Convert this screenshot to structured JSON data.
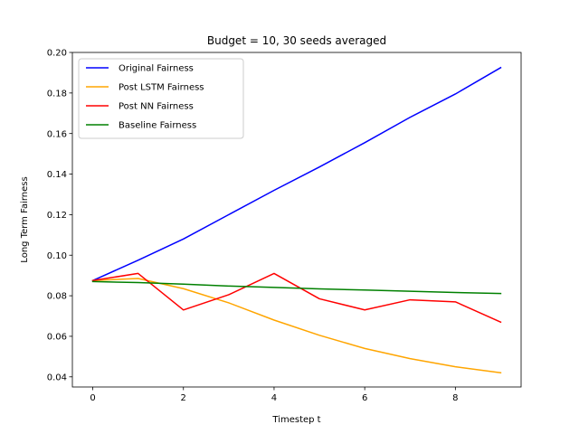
{
  "chart_data": {
    "type": "line",
    "title": "Budget = 10, 30 seeds averaged",
    "xlabel": "Timestep t",
    "ylabel": "Long Term Fairness",
    "xlim": [
      -0.45,
      9.45
    ],
    "ylim": [
      0.035,
      0.2
    ],
    "xticks": [
      0,
      2,
      4,
      6,
      8
    ],
    "xtick_labels": [
      "0",
      "2",
      "4",
      "6",
      "8"
    ],
    "yticks": [
      0.04,
      0.06,
      0.08,
      0.1,
      0.12,
      0.14,
      0.16,
      0.18,
      0.2
    ],
    "ytick_labels": [
      "0.04",
      "0.06",
      "0.08",
      "0.10",
      "0.12",
      "0.14",
      "0.16",
      "0.18",
      "0.20"
    ],
    "grid": false,
    "legend_position": "top-left",
    "x": [
      0,
      1,
      2,
      3,
      4,
      5,
      6,
      7,
      8,
      9
    ],
    "series": [
      {
        "name": "Original Fairness",
        "color": "#0000ff",
        "values": [
          0.0875,
          0.0975,
          0.108,
          0.12,
          0.132,
          0.1435,
          0.1555,
          0.168,
          0.1795,
          0.1925
        ]
      },
      {
        "name": "Post LSTM Fairness",
        "color": "#ffa500",
        "values": [
          0.0875,
          0.0885,
          0.0835,
          0.0765,
          0.068,
          0.0605,
          0.054,
          0.049,
          0.045,
          0.042
        ]
      },
      {
        "name": "Post NN Fairness",
        "color": "#ff0000",
        "values": [
          0.0875,
          0.091,
          0.073,
          0.0805,
          0.091,
          0.0785,
          0.073,
          0.078,
          0.077,
          0.067
        ]
      },
      {
        "name": "Baseline Fairness",
        "color": "#008000",
        "values": [
          0.087,
          0.0865,
          0.0857,
          0.0848,
          0.0841,
          0.0834,
          0.0828,
          0.0822,
          0.0816,
          0.0811
        ]
      }
    ]
  }
}
